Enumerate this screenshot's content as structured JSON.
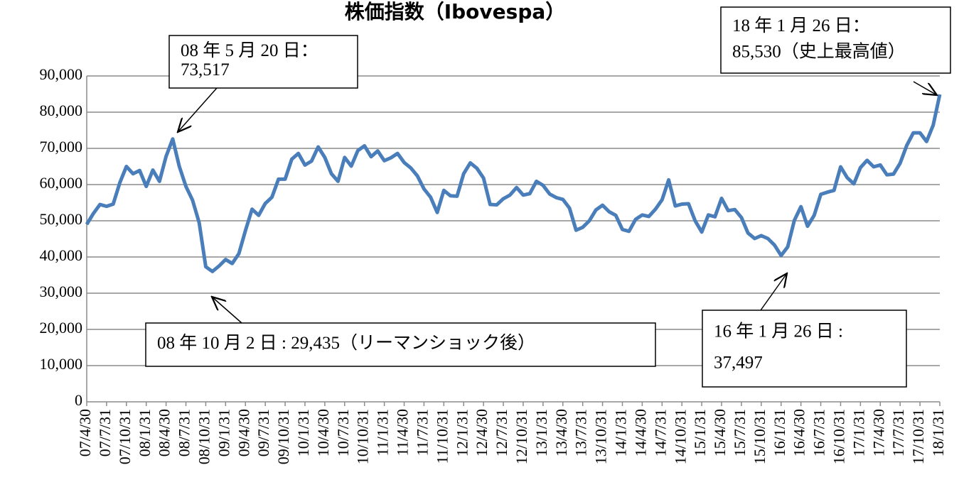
{
  "chart_data": {
    "type": "line",
    "title": "株価指数（Ibovespa）",
    "categories": [
      "07/4/30",
      null,
      null,
      "07/7/31",
      null,
      null,
      "07/10/31",
      null,
      null,
      "08/1/31",
      null,
      null,
      "08/4/30",
      null,
      null,
      "08/7/31",
      null,
      null,
      "08/10/31",
      null,
      null,
      "09/1/31",
      null,
      null,
      "09/4/30",
      null,
      null,
      "09/7/31",
      null,
      null,
      "09/10/31",
      null,
      null,
      "10/1/31",
      null,
      null,
      "10/4/30",
      null,
      null,
      "10/7/31",
      null,
      null,
      "10/10/31",
      null,
      null,
      "11/1/31",
      null,
      null,
      "11/4/30",
      null,
      null,
      "11/7/31",
      null,
      null,
      "11/10/31",
      null,
      null,
      "12/1/31",
      null,
      null,
      "12/4/30",
      null,
      null,
      "12/7/31",
      null,
      null,
      "12/10/31",
      null,
      null,
      "13/1/31",
      null,
      null,
      "13/4/30",
      null,
      null,
      "13/7/31",
      null,
      null,
      "13/10/31",
      null,
      null,
      "14/1/31",
      null,
      null,
      "14/4/30",
      null,
      null,
      "14/7/31",
      null,
      null,
      "14/10/31",
      null,
      null,
      "15/1/31",
      null,
      null,
      "15/4/30",
      null,
      null,
      "15/7/31",
      null,
      null,
      "15/10/31",
      null,
      null,
      "16/1/31",
      null,
      null,
      "16/4/30",
      null,
      null,
      "16/7/31",
      null,
      null,
      "16/10/31",
      null,
      null,
      "17/1/31",
      null,
      null,
      "17/4/30",
      null,
      null,
      "17/7/31",
      null,
      null,
      "17/10/31",
      null,
      null,
      "18/1/31"
    ],
    "series": [
      {
        "name": "Ibovespa",
        "color": "#4a7ebb",
        "values": [
          49000,
          52000,
          54500,
          54000,
          54600,
          60500,
          65000,
          63000,
          63900,
          59500,
          64000,
          60900,
          67800,
          72600,
          65000,
          59500,
          55700,
          49500,
          37300,
          36000,
          37500,
          39300,
          38200,
          40900,
          47300,
          53200,
          51500,
          54800,
          56500,
          61500,
          61500,
          67000,
          68600,
          65400,
          66500,
          70400,
          67500,
          63000,
          60900,
          67500,
          65100,
          69400,
          70700,
          67700,
          69300,
          66600,
          67400,
          68600,
          66100,
          64600,
          62400,
          58800,
          56500,
          52300,
          58400,
          56900,
          56800,
          63000,
          66000,
          64500,
          61800,
          54500,
          54400,
          56100,
          57100,
          59200,
          57100,
          57500,
          60900,
          59800,
          57400,
          56400,
          55900,
          53500,
          47400,
          48200,
          50000,
          53000,
          54300,
          52500,
          51500,
          47600,
          47100,
          50400,
          51600,
          51200,
          53200,
          55800,
          61300,
          54100,
          54600,
          54700,
          50000,
          46900,
          51600,
          51100,
          56200,
          52800,
          53100,
          50900,
          46600,
          45100,
          45900,
          45100,
          43300,
          40400,
          42800,
          50100,
          53900,
          48500,
          51500,
          57300,
          57900,
          58400,
          64900,
          61900,
          60200,
          64700,
          66700,
          64900,
          65400,
          62700,
          62900,
          65900,
          70800,
          74300,
          74300,
          71900,
          76400,
          84900
        ]
      }
    ],
    "ylim": [
      0,
      90000
    ],
    "yticks": [
      {
        "value": 0,
        "label": "0"
      },
      {
        "value": 10000,
        "label": "10,000"
      },
      {
        "value": 20000,
        "label": "20,000"
      },
      {
        "value": 30000,
        "label": "30,000"
      },
      {
        "value": 40000,
        "label": "40,000"
      },
      {
        "value": 50000,
        "label": "50,000"
      },
      {
        "value": 60000,
        "label": "60,000"
      },
      {
        "value": 70000,
        "label": "70,000"
      },
      {
        "value": 80000,
        "label": "80,000"
      },
      {
        "value": 90000,
        "label": "90,000"
      }
    ],
    "grid": true,
    "annotations": [
      {
        "lines": [
          "08 年 5 月 20 日：",
          "73,517"
        ]
      },
      {
        "lines": [
          "08 年 10 月 2 日 : 29,435（リーマンショック後）"
        ]
      },
      {
        "lines": [
          "16 年 1 月 26 日 :",
          "37,497"
        ]
      },
      {
        "lines": [
          "18 年 1 月 26 日：",
          "85,530（史上最高値）"
        ]
      }
    ]
  }
}
